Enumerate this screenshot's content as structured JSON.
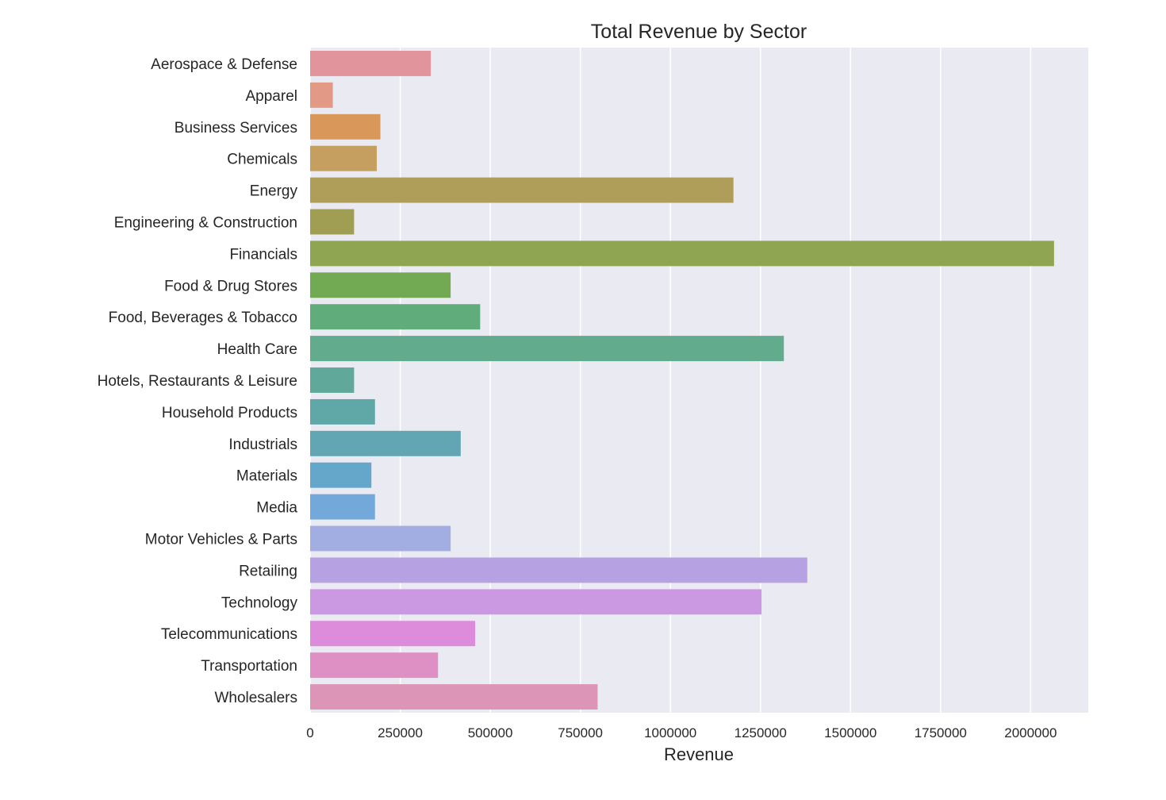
{
  "chart_data": {
    "type": "bar",
    "orientation": "horizontal",
    "title": "Total Revenue by Sector",
    "xlabel": "Revenue",
    "ylabel": "",
    "xlim": [
      0,
      2160000
    ],
    "xticks": [
      0,
      250000,
      500000,
      750000,
      1000000,
      1250000,
      1500000,
      1750000,
      2000000
    ],
    "xtick_labels": [
      "0",
      "250000",
      "500000",
      "750000",
      "1000000",
      "1250000",
      "1500000",
      "1750000",
      "2000000"
    ],
    "grid": "vertical",
    "background": "#EAEAF2",
    "categories": [
      "Aerospace & Defense",
      "Apparel",
      "Business Services",
      "Chemicals",
      "Energy",
      "Engineering & Construction",
      "Financials",
      "Food & Drug Stores",
      "Food, Beverages & Tobacco",
      "Health Care",
      "Hotels, Restaurants & Leisure",
      "Household Products",
      "Industrials",
      "Materials",
      "Media",
      "Motor Vehicles & Parts",
      "Retailing",
      "Technology",
      "Telecommunications",
      "Transportation",
      "Wholesalers"
    ],
    "values": [
      335000,
      63000,
      195000,
      185000,
      1175000,
      122000,
      2065000,
      390000,
      472000,
      1315000,
      122000,
      180000,
      418000,
      170000,
      180000,
      390000,
      1380000,
      1253000,
      458000,
      355000,
      798000
    ],
    "colors": [
      "#E1949B",
      "#E29A86",
      "#D9975A",
      "#C59F5F",
      "#AE9E5A",
      "#A09E53",
      "#8FA552",
      "#72AA54",
      "#60AC7B",
      "#62AB8D",
      "#60A99A",
      "#60A7A7",
      "#62A6B4",
      "#65A6CB",
      "#73A9DA",
      "#A2AEE2",
      "#B6A1E2",
      "#CA99E1",
      "#DC8CDA",
      "#DE8FC4",
      "#DC95B7"
    ]
  }
}
